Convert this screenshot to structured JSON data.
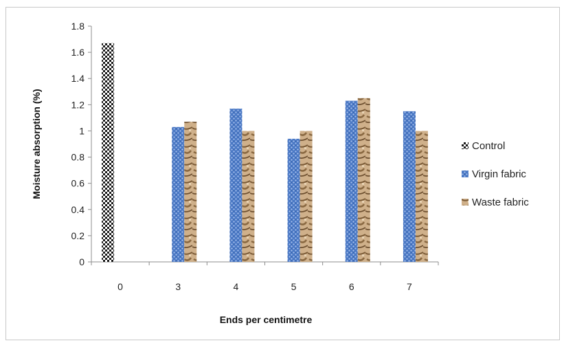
{
  "chart_data": {
    "type": "bar",
    "title": "",
    "xlabel": "Ends per centimetre",
    "ylabel": "Moisture absorption (%)",
    "categories": [
      "0",
      "3",
      "4",
      "5",
      "6",
      "7"
    ],
    "ylim": [
      0,
      1.8
    ],
    "yticks": [
      "0",
      "0.2",
      "0.4",
      "0.6",
      "0.8",
      "1",
      "1.2",
      "1.4",
      "1.6",
      "1.8"
    ],
    "grid": false,
    "legend_position": "right",
    "series": [
      {
        "name": "Control",
        "color": "#1a1a1a",
        "pattern": "checker",
        "values": [
          1.67,
          null,
          null,
          null,
          null,
          null
        ]
      },
      {
        "name": "Virgin fabric",
        "color": "#4a78c4",
        "pattern": "dots",
        "values": [
          null,
          1.03,
          1.17,
          0.94,
          1.23,
          1.15
        ]
      },
      {
        "name": "Waste fabric",
        "color": "#c9a77e",
        "pattern": "texture",
        "values": [
          null,
          1.07,
          1.0,
          1.0,
          1.25,
          1.0
        ]
      }
    ]
  }
}
